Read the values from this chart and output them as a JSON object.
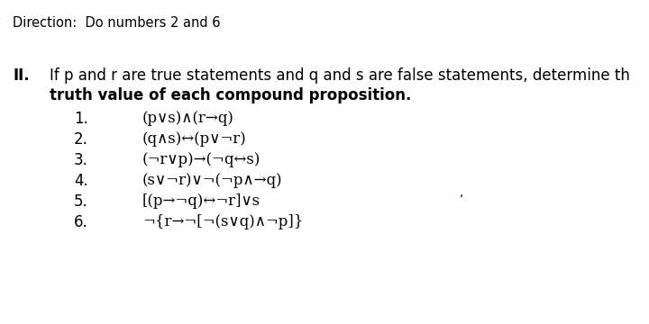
{
  "background_color": "#ffffff",
  "direction_text": "Direction:  Do numbers 2 and 6",
  "direction_fontsize": 10.5,
  "section_label": "II.",
  "intro_line1": "If p and r are true statements and q and s are false statements, determine th",
  "intro_line2": "truth value of each compound proposition.",
  "intro_fontsize": 12,
  "items": [
    {
      "num": "1.",
      "formula": "(p∨s)∧(r→q)"
    },
    {
      "num": "2.",
      "formula": "(q∧s)↔(p∨¬r)"
    },
    {
      "num": "3.",
      "formula": "(¬r∨p)→(¬q↔s)"
    },
    {
      "num": "4.",
      "formula": "(s∨¬r)∨¬(¬p∧→q)"
    },
    {
      "num": "5.",
      "formula": "[(p→¬q)↔¬r]∨s"
    },
    {
      "num": "6.",
      "formula": "¬{r→¬[¬(s∨q)∧¬p]}"
    }
  ],
  "item_fontsize": 12,
  "tick_char": "‘",
  "tick_fontsize": 10
}
